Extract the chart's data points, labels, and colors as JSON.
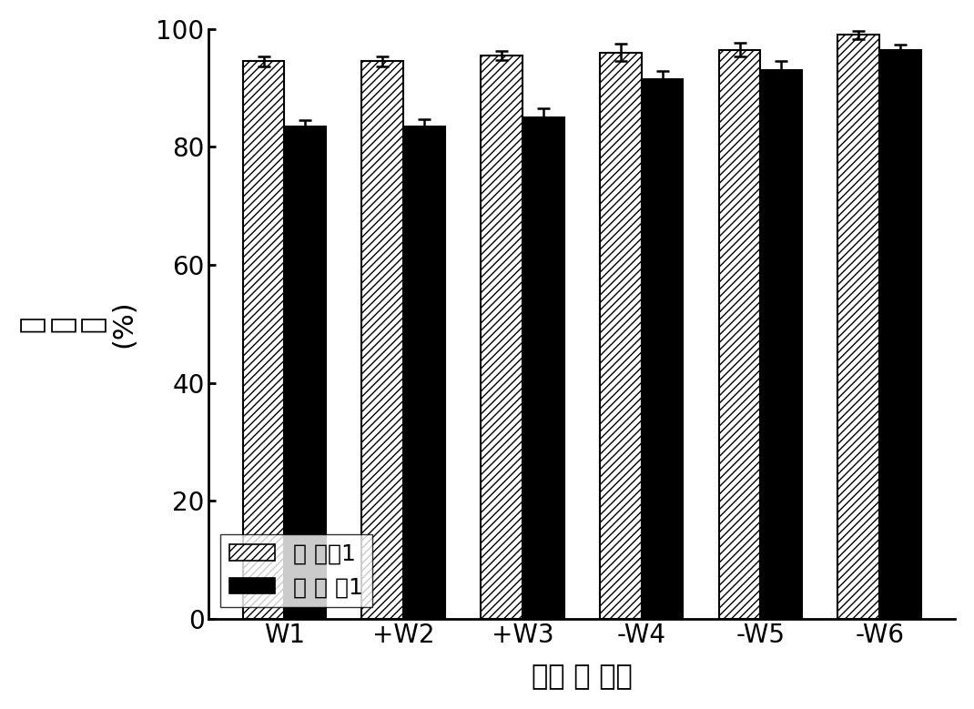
{
  "categories": [
    "W1",
    "+W2",
    "+W3",
    "-W4",
    "-W5",
    "-W6"
  ],
  "series1_values": [
    94.5,
    94.5,
    95.5,
    96.0,
    96.5,
    99.0
  ],
  "series2_values": [
    83.5,
    83.5,
    85.0,
    91.5,
    93.0,
    96.5
  ],
  "series1_errors": [
    0.8,
    0.9,
    0.8,
    1.5,
    1.2,
    0.7
  ],
  "series2_errors": [
    1.0,
    1.2,
    1.5,
    1.3,
    1.5,
    0.8
  ],
  "series1_label": "比 较例1",
  "series2_label": "实 施 例1",
  "xlabel": "微量 有 机物",
  "ylabel_lines": [
    "截",
    "留",
    "率",
    "(%)"
  ],
  "ylim": [
    0,
    100
  ],
  "yticks": [
    0,
    20,
    40,
    60,
    80,
    100
  ],
  "bar_width": 0.35,
  "hatch_pattern": "////",
  "series1_facecolor": "white",
  "series1_edgecolor": "black",
  "series2_facecolor": "black",
  "series2_edgecolor": "black",
  "background_color": "white",
  "figsize": [
    10.7,
    7.79
  ],
  "dpi": 100,
  "axis_fontsize": 22,
  "tick_fontsize": 20,
  "legend_fontsize": 18,
  "xlabel_fontsize": 22
}
